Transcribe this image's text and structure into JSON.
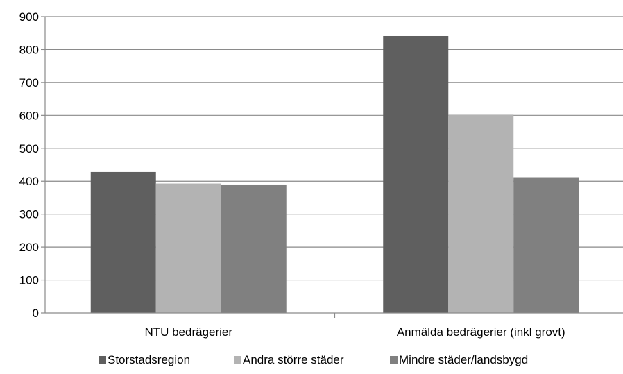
{
  "chart_data": {
    "type": "bar",
    "title": "",
    "xlabel": "",
    "ylabel": "",
    "categories": [
      "NTU bedrägerier",
      "Anmälda bedrägerier (inkl grovt)"
    ],
    "series": [
      {
        "name": "Storstadsregion",
        "values": [
          428,
          841
        ],
        "color": "#5f5f5f"
      },
      {
        "name": "Andra större städer",
        "values": [
          393,
          602
        ],
        "color": "#b3b3b3"
      },
      {
        "name": "Mindre städer/landsbygd",
        "values": [
          390,
          412
        ],
        "color": "#808080"
      }
    ],
    "ylim": [
      0,
      900
    ],
    "yticks": [
      0,
      100,
      200,
      300,
      400,
      500,
      600,
      700,
      800,
      900
    ],
    "ytick_labels": [
      "0",
      "100",
      "200",
      "300",
      "400",
      "500",
      "600",
      "700",
      "800",
      "900"
    ],
    "grid": true,
    "legend_position": "bottom"
  }
}
